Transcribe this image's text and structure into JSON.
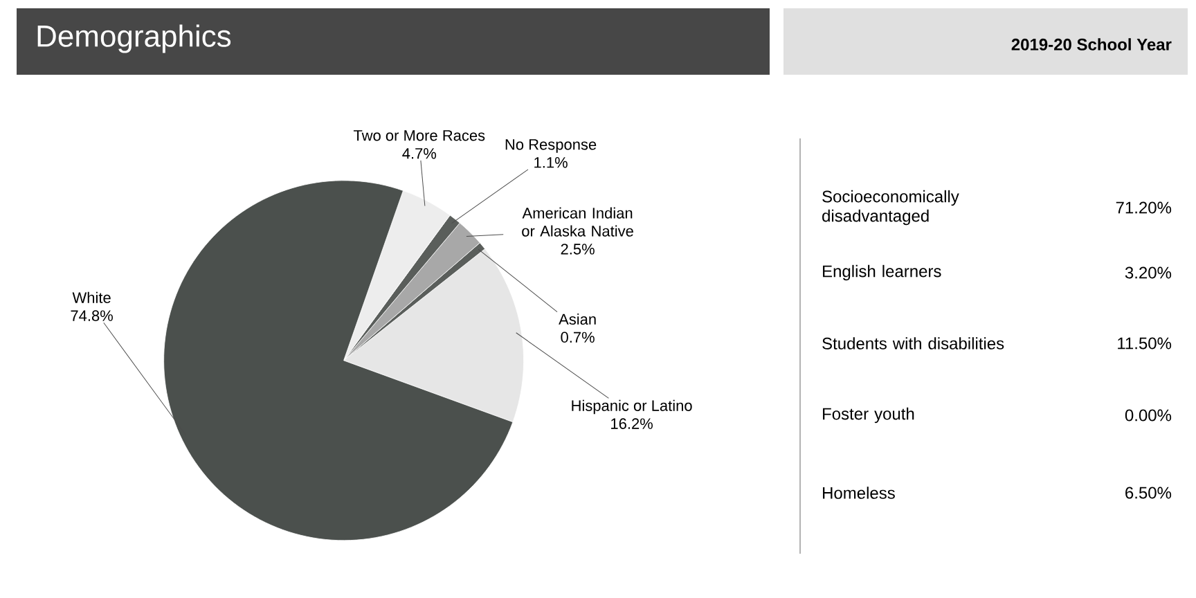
{
  "chart_data": [
    {
      "type": "pie",
      "title": "Demographics",
      "categories": [
        "Hispanic or Latino",
        "Asian",
        "American Indian or Alaska Native",
        "No Response",
        "Two or More Races",
        "White"
      ],
      "values": [
        16.2,
        0.7,
        2.5,
        1.1,
        4.7,
        74.8
      ],
      "value_labels": [
        "16.2%",
        "0.7%",
        "2.5%",
        "1.1%",
        "4.7%",
        "74.8%"
      ],
      "colors": [
        "#e6e6e6",
        "#5a5e5b",
        "#a8a8a8",
        "#5a5e5b",
        "#ededed",
        "#4b504d"
      ]
    },
    {
      "type": "other",
      "title": "2019-20 School Year",
      "annotations": [
        "Socioeconomically disadvantaged",
        "71.20%",
        "English learners",
        "3.20%",
        "Students with disabilities",
        "11.50%",
        "Foster youth",
        "0.00%",
        "Homeless",
        "6.50%"
      ]
    }
  ]
}
